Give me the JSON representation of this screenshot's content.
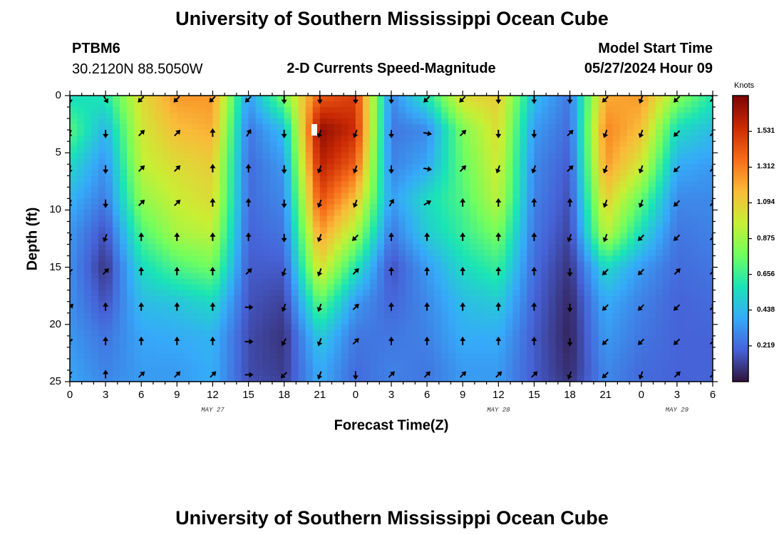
{
  "page": {
    "title_top": "University of Southern Mississippi Ocean Cube",
    "title_bottom": "University of Southern Mississippi Ocean Cube",
    "station_id": "PTBM6",
    "station_coords": "30.2120N  88.5050W",
    "plot_title": "2-D Currents Speed-Magnitude",
    "model_start_label": "Model Start Time",
    "model_start_value": "05/27/2024 Hour 09"
  },
  "chart_data": {
    "type": "heatmap",
    "title": "2-D Currents Speed-Magnitude",
    "xlabel": "Forecast Time(Z)",
    "ylabel": "Depth (ft)",
    "x_tick_labels": [
      "0",
      "3",
      "6",
      "9",
      "12",
      "15",
      "18",
      "21",
      "0",
      "3",
      "6",
      "9",
      "12",
      "15",
      "18",
      "21",
      "0",
      "3",
      "6"
    ],
    "x_range_hours": [
      0,
      54
    ],
    "x_tick_step_hours": 3,
    "y_ticks": [
      0,
      5,
      10,
      15,
      20,
      25
    ],
    "y_range_ft": [
      0,
      25
    ],
    "date_labels": [
      {
        "text": "MAY 27",
        "hour": 12
      },
      {
        "text": "MAY 28",
        "hour": 36
      },
      {
        "text": "MAY 29",
        "hour": 51
      }
    ],
    "colorbar": {
      "unit": "Knots",
      "range": [
        0,
        1.75
      ],
      "ticks": [
        "1.531",
        "1.312",
        "1.094",
        "0.875",
        "0.656",
        "0.438",
        "0.219"
      ],
      "tick_values": [
        1.531,
        1.312,
        1.094,
        0.875,
        0.656,
        0.438,
        0.219
      ],
      "colors": [
        "#30123b",
        "#4662d7",
        "#36aaf9",
        "#1ae4b6",
        "#72fe5e",
        "#c8ef34",
        "#faba39",
        "#f66b19",
        "#ca2a04",
        "#7a0403"
      ]
    },
    "time_hours": [
      0,
      3,
      6,
      9,
      12,
      15,
      18,
      21,
      24,
      27,
      30,
      33,
      36,
      39,
      42,
      45,
      48,
      51,
      54
    ],
    "depth_ft": [
      0,
      3,
      6,
      9,
      12,
      15,
      18,
      21,
      24,
      25
    ],
    "speed_knots": [
      [
        0.55,
        0.72,
        0.55,
        0.42,
        0.34,
        0.32,
        0.32,
        0.34,
        0.37,
        0.38
      ],
      [
        0.6,
        0.42,
        0.32,
        0.26,
        0.15,
        0.08,
        0.15,
        0.24,
        0.28,
        0.3
      ],
      [
        1.05,
        1.0,
        0.95,
        0.85,
        0.7,
        0.55,
        0.45,
        0.38,
        0.35,
        0.35
      ],
      [
        1.25,
        1.15,
        1.05,
        0.98,
        0.9,
        0.7,
        0.48,
        0.4,
        0.35,
        0.35
      ],
      [
        1.25,
        1.2,
        1.1,
        1.05,
        0.95,
        0.78,
        0.55,
        0.42,
        0.4,
        0.4
      ],
      [
        0.35,
        0.25,
        0.22,
        0.22,
        0.2,
        0.18,
        0.16,
        0.14,
        0.14,
        0.15
      ],
      [
        0.8,
        0.45,
        0.35,
        0.3,
        0.25,
        0.18,
        0.12,
        0.08,
        0.1,
        0.12
      ],
      [
        1.4,
        1.7,
        1.6,
        1.45,
        1.25,
        1.05,
        0.75,
        0.5,
        0.4,
        0.4
      ],
      [
        1.5,
        1.55,
        1.4,
        1.15,
        0.9,
        0.6,
        0.35,
        0.25,
        0.22,
        0.22
      ],
      [
        0.3,
        0.25,
        0.28,
        0.35,
        0.25,
        0.15,
        0.2,
        0.25,
        0.28,
        0.28
      ],
      [
        0.6,
        0.3,
        0.38,
        0.55,
        0.5,
        0.35,
        0.3,
        0.28,
        0.25,
        0.25
      ],
      [
        1.05,
        0.8,
        0.75,
        0.7,
        0.65,
        0.55,
        0.45,
        0.4,
        0.35,
        0.35
      ],
      [
        1.1,
        1.05,
        1.0,
        0.95,
        0.8,
        0.65,
        0.5,
        0.4,
        0.35,
        0.35
      ],
      [
        0.45,
        0.35,
        0.3,
        0.28,
        0.25,
        0.22,
        0.2,
        0.18,
        0.18,
        0.18
      ],
      [
        0.25,
        0.22,
        0.18,
        0.15,
        0.12,
        0.08,
        0.05,
        0.04,
        0.06,
        0.08
      ],
      [
        1.2,
        1.3,
        1.25,
        1.1,
        0.95,
        0.55,
        0.4,
        0.35,
        0.3,
        0.3
      ],
      [
        1.25,
        1.15,
        1.0,
        0.75,
        0.55,
        0.35,
        0.28,
        0.25,
        0.22,
        0.22
      ],
      [
        0.85,
        0.55,
        0.4,
        0.3,
        0.25,
        0.22,
        0.2,
        0.2,
        0.2,
        0.2
      ],
      [
        0.6,
        0.45,
        0.35,
        0.3,
        0.28,
        0.25,
        0.22,
        0.2,
        0.2,
        0.2
      ]
    ],
    "arrow_times_hours": [
      0,
      3,
      6,
      9,
      12,
      15,
      18,
      21,
      24,
      27,
      30,
      33,
      36,
      39,
      42,
      45,
      48,
      51,
      54
    ],
    "arrow_depths_ft": [
      0.3,
      3.3,
      6.4,
      9.4,
      12.4,
      15.4,
      18.5,
      21.5,
      24.4
    ],
    "arrow_directions_deg": [
      [
        180,
        200,
        190,
        200,
        200,
        225,
        45,
        225,
        215
      ],
      [
        150,
        180,
        180,
        180,
        200,
        45,
        0,
        0,
        0
      ],
      [
        225,
        45,
        45,
        45,
        0,
        0,
        0,
        0,
        45
      ],
      [
        225,
        45,
        45,
        45,
        0,
        0,
        0,
        0,
        45
      ],
      [
        225,
        0,
        0,
        0,
        0,
        0,
        0,
        0,
        45
      ],
      [
        225,
        30,
        0,
        0,
        0,
        45,
        90,
        90,
        90
      ],
      [
        180,
        180,
        180,
        180,
        180,
        200,
        200,
        210,
        225
      ],
      [
        180,
        200,
        200,
        200,
        200,
        200,
        200,
        200,
        200
      ],
      [
        180,
        200,
        200,
        200,
        225,
        45,
        45,
        45,
        180
      ],
      [
        180,
        180,
        180,
        30,
        0,
        0,
        0,
        0,
        45
      ],
      [
        225,
        100,
        100,
        60,
        0,
        0,
        0,
        0,
        45
      ],
      [
        225,
        45,
        45,
        0,
        0,
        0,
        0,
        0,
        45
      ],
      [
        180,
        180,
        200,
        0,
        0,
        0,
        0,
        0,
        45
      ],
      [
        180,
        180,
        200,
        0,
        0,
        0,
        0,
        0,
        45
      ],
      [
        180,
        45,
        45,
        0,
        200,
        180,
        180,
        180,
        200
      ],
      [
        225,
        200,
        200,
        200,
        200,
        225,
        225,
        225,
        225
      ],
      [
        200,
        200,
        200,
        200,
        225,
        225,
        225,
        225,
        200
      ],
      [
        225,
        225,
        225,
        225,
        225,
        45,
        225,
        225,
        45
      ],
      [
        45,
        45,
        45,
        45,
        45,
        45,
        45,
        45,
        45
      ]
    ]
  }
}
